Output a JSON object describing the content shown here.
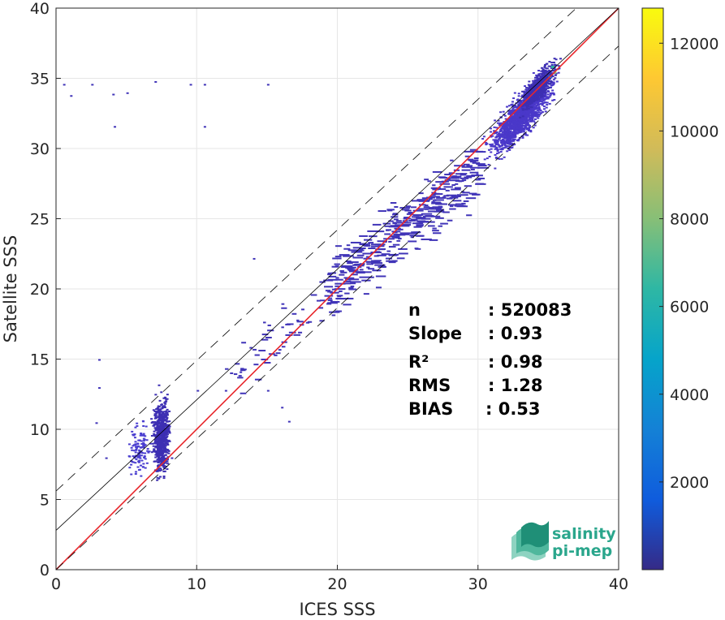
{
  "chart_data": {
    "type": "heatmap",
    "title": "",
    "xlabel": "ICES SSS",
    "ylabel": "Satellite SSS",
    "xlim": [
      0,
      40
    ],
    "ylim": [
      0,
      40
    ],
    "xticks": [
      "0",
      "10",
      "20",
      "30",
      "40"
    ],
    "yticks": [
      "0",
      "5",
      "10",
      "15",
      "20",
      "25",
      "30",
      "35",
      "40"
    ],
    "grid": true,
    "colormap": "parula",
    "colorbar": {
      "range": [
        0,
        12800
      ],
      "ticks": [
        "2000",
        "4000",
        "6000",
        "8000",
        "10000",
        "12000"
      ],
      "colors": [
        "#352a87",
        "#0f5cdd",
        "#1481d6",
        "#06a4ca",
        "#2eb7a4",
        "#87bf77",
        "#d1bb59",
        "#fec832",
        "#f9fb0e"
      ]
    },
    "density_regions": [
      {
        "region": "high-salinity cluster",
        "x_range": [
          28,
          37
        ],
        "y_range": [
          28,
          37
        ],
        "peak_count": 12800,
        "peak_at": [
          35.3,
          35.5
        ]
      },
      {
        "region": "low-salinity cluster",
        "x_range": [
          5,
          8.5
        ],
        "y_range": [
          4,
          17
        ]
      },
      {
        "region": "intermediate band",
        "x_range": [
          12,
          30
        ],
        "y_range": [
          17,
          30
        ]
      }
    ],
    "lines": [
      {
        "name": "1:1",
        "color": "#e8262b",
        "points": [
          [
            0,
            0
          ],
          [
            40,
            40
          ]
        ]
      },
      {
        "name": "regression",
        "color": "#000000",
        "points": [
          [
            0,
            2.8
          ],
          [
            40,
            40
          ]
        ]
      },
      {
        "name": "upper bound",
        "color": "#000000",
        "dashed": true,
        "points": [
          [
            0,
            5.6
          ],
          [
            40,
            42.8
          ]
        ]
      },
      {
        "name": "lower bound",
        "color": "#000000",
        "dashed": true,
        "points": [
          [
            0,
            0.0
          ],
          [
            40,
            37.3
          ]
        ]
      }
    ],
    "stats": [
      {
        "label": "n",
        "value": ": 520083"
      },
      {
        "label": "Slope",
        "value": ": 0.93"
      },
      {
        "label": "R²",
        "value": ": 0.98"
      },
      {
        "label": "RMS",
        "value": ": 1.28"
      },
      {
        "label": "BIAS",
        "value": ": 0.53"
      }
    ]
  },
  "logo": {
    "line1": "salinity",
    "line2": "pi-mep",
    "color": "#2aa68c"
  }
}
